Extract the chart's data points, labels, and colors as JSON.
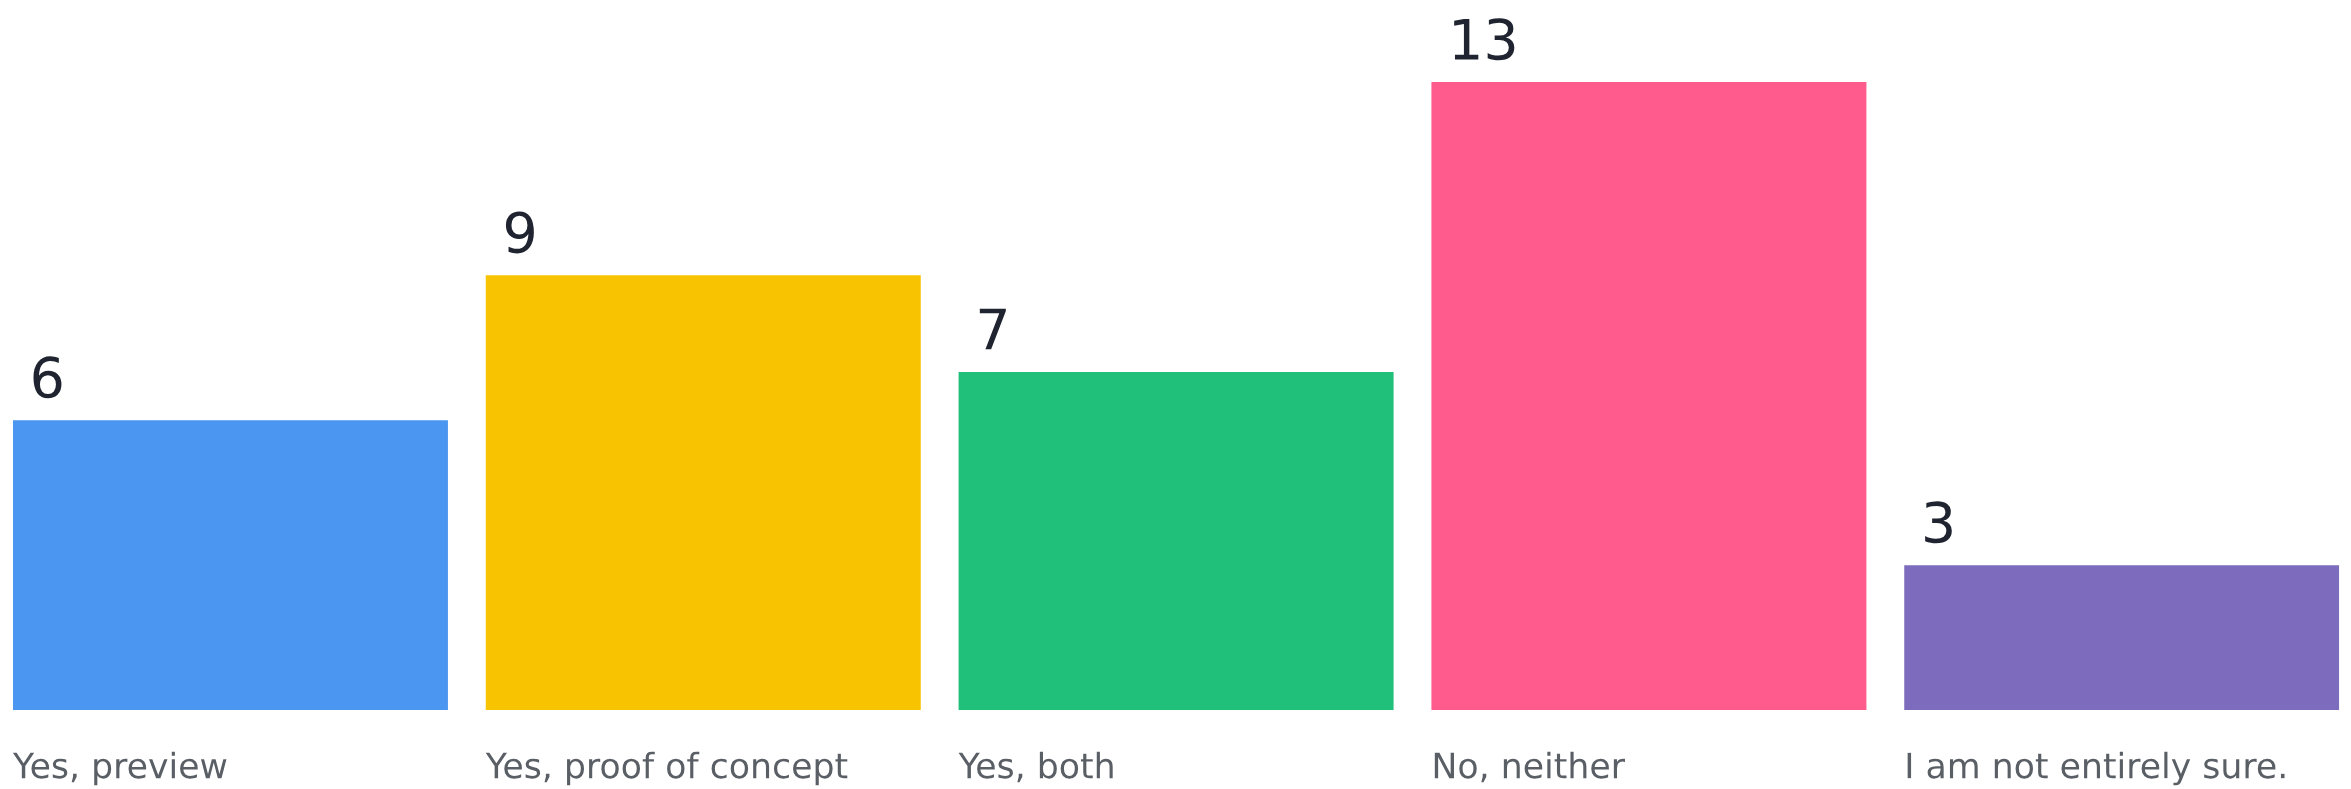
{
  "chart_data": {
    "type": "bar",
    "categories": [
      "Yes, preview",
      "Yes, proof of concept",
      "Yes, both",
      "No, neither",
      "I am not entirely sure."
    ],
    "values": [
      6,
      9,
      7,
      13,
      3
    ],
    "colors": [
      "#4a96f0",
      "#f8c300",
      "#20bf7a",
      "#ff5c8d",
      "#7d6bbd"
    ],
    "data_labels": true
  }
}
